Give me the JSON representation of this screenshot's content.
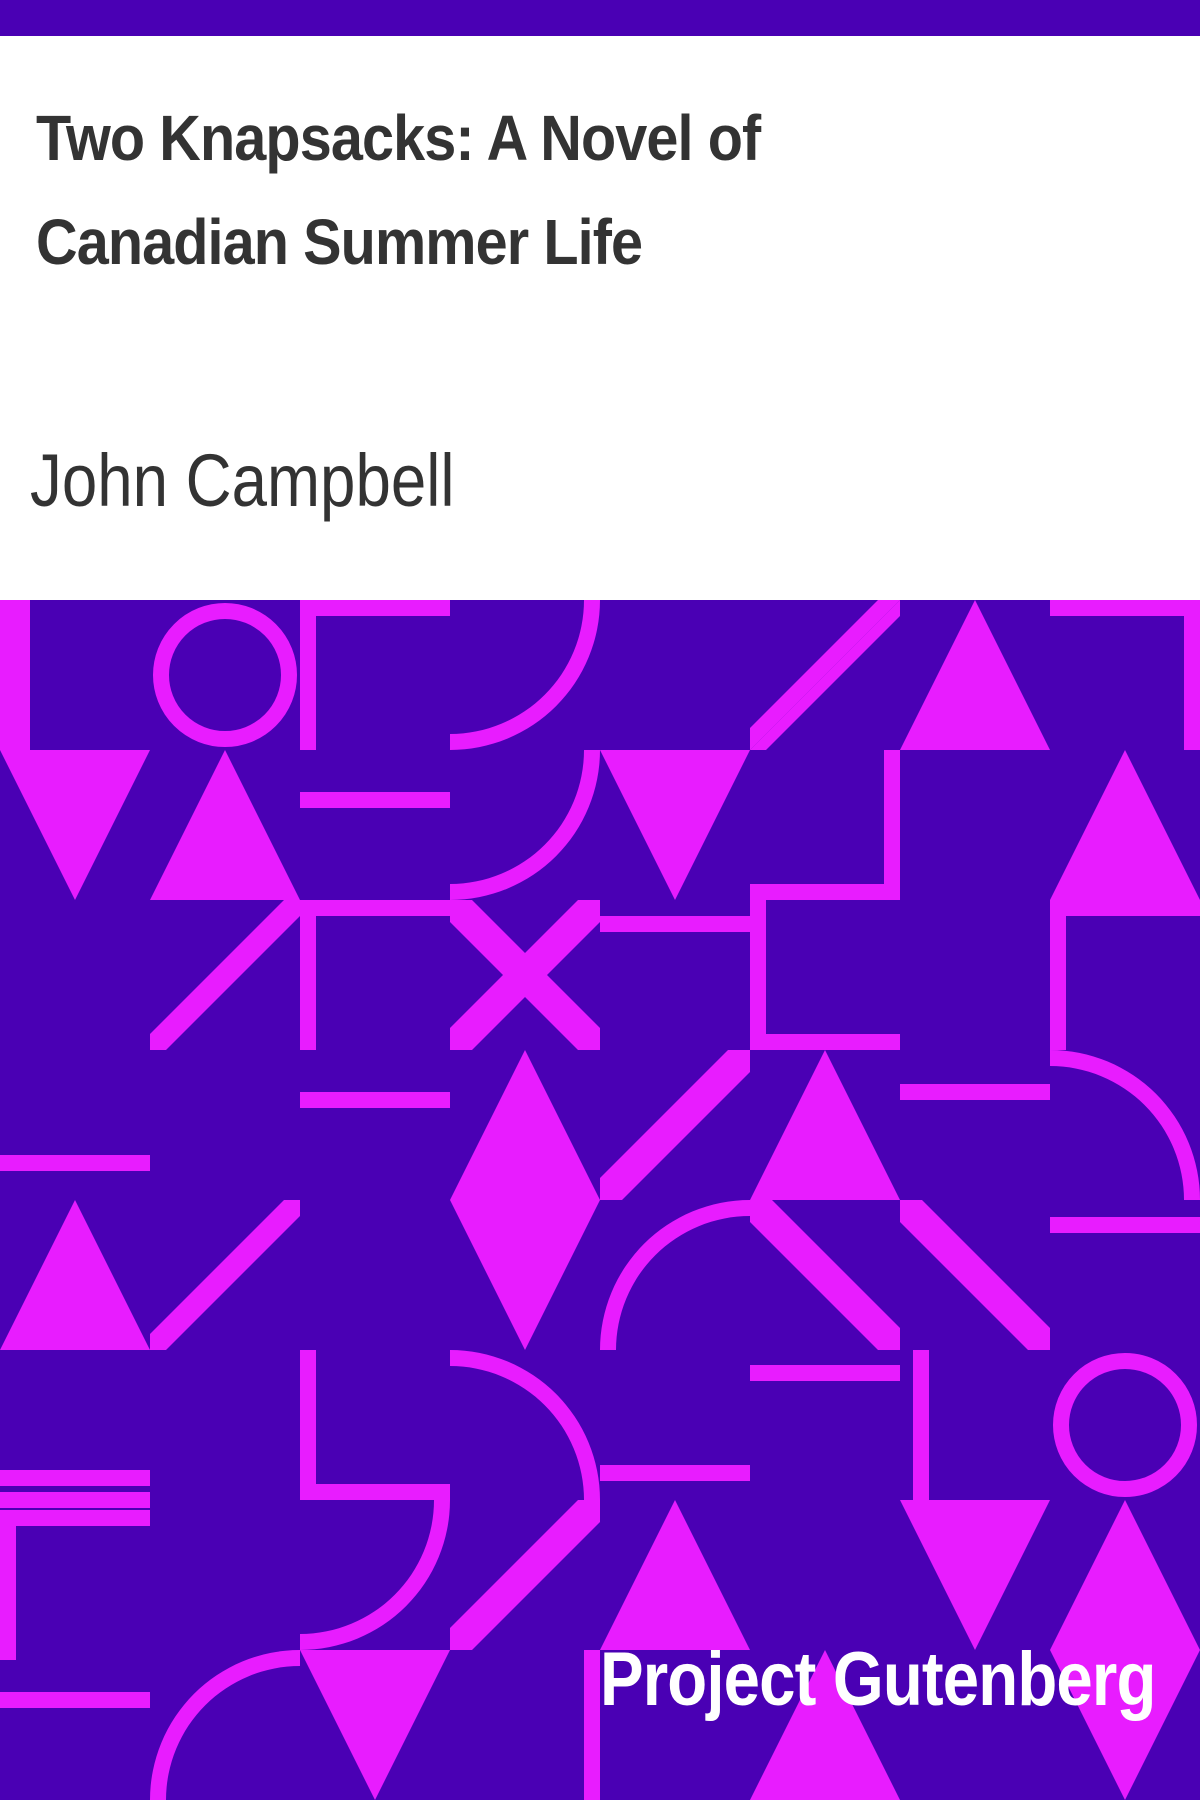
{
  "book": {
    "title": "Two Knapsacks: A Novel of Canadian Summer Life",
    "author": "John Campbell",
    "publisher": "Project Gutenberg"
  },
  "colors": {
    "background": "#4a00b4",
    "accent": "#e81cff",
    "header_background": "#ffffff",
    "text_dark": "#333333",
    "text_light": "#ffffff"
  }
}
